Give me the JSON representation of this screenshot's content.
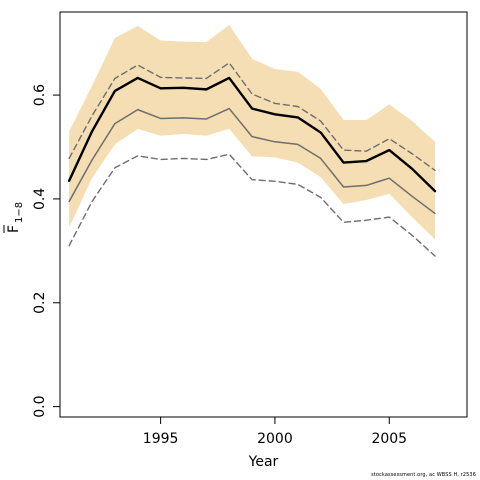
{
  "chart_data": {
    "type": "line",
    "xlabel": "Year",
    "ylabel": "F̄ 1-8",
    "ylabel_parts": {
      "main": "F",
      "subscript": "1−8"
    },
    "xlim": [
      1990.6,
      2008.4
    ],
    "ylim": [
      -0.02,
      0.76
    ],
    "xticks": [
      1995,
      2000,
      2005
    ],
    "yticks": [
      0.0,
      0.2,
      0.4,
      0.6
    ],
    "ytick_labels": [
      "0.0",
      "0.2",
      "0.4",
      "0.6"
    ],
    "grid": false,
    "x": [
      1991,
      1992,
      1993,
      1994,
      1995,
      1996,
      1997,
      1998,
      1999,
      2000,
      2001,
      2002,
      2003,
      2004,
      2005,
      2006,
      2007
    ],
    "band": {
      "color": "#f5deb3",
      "lower": [
        0.345,
        0.44,
        0.505,
        0.535,
        0.522,
        0.525,
        0.522,
        0.535,
        0.482,
        0.48,
        0.47,
        0.442,
        0.39,
        0.398,
        0.41,
        0.365,
        0.322
      ],
      "upper": [
        0.53,
        0.618,
        0.71,
        0.733,
        0.705,
        0.703,
        0.702,
        0.735,
        0.67,
        0.65,
        0.645,
        0.612,
        0.552,
        0.552,
        0.582,
        0.55,
        0.51
      ]
    },
    "series": [
      {
        "style": "solid-black-thick",
        "color": "#000000",
        "values": [
          0.435,
          0.53,
          0.608,
          0.633,
          0.613,
          0.614,
          0.611,
          0.633,
          0.574,
          0.563,
          0.557,
          0.528,
          0.47,
          0.473,
          0.494,
          0.458,
          0.415
        ]
      },
      {
        "style": "dashed-gray-upper",
        "color": "#6e6e6e",
        "values": [
          0.478,
          0.56,
          0.632,
          0.658,
          0.634,
          0.633,
          0.632,
          0.662,
          0.602,
          0.584,
          0.578,
          0.55,
          0.494,
          0.492,
          0.516,
          0.487,
          0.455
        ]
      },
      {
        "style": "solid-gray",
        "color": "#6e6e6e",
        "values": [
          0.395,
          0.475,
          0.545,
          0.572,
          0.555,
          0.556,
          0.554,
          0.574,
          0.52,
          0.51,
          0.505,
          0.478,
          0.423,
          0.426,
          0.44,
          0.405,
          0.372
        ]
      },
      {
        "style": "dashed-gray-lower",
        "color": "#6e6e6e",
        "values": [
          0.31,
          0.395,
          0.46,
          0.483,
          0.476,
          0.478,
          0.476,
          0.486,
          0.437,
          0.434,
          0.428,
          0.403,
          0.355,
          0.359,
          0.365,
          0.33,
          0.29
        ]
      }
    ]
  },
  "footer_text": "stockassessment.org, ac WBSS H, r2536"
}
